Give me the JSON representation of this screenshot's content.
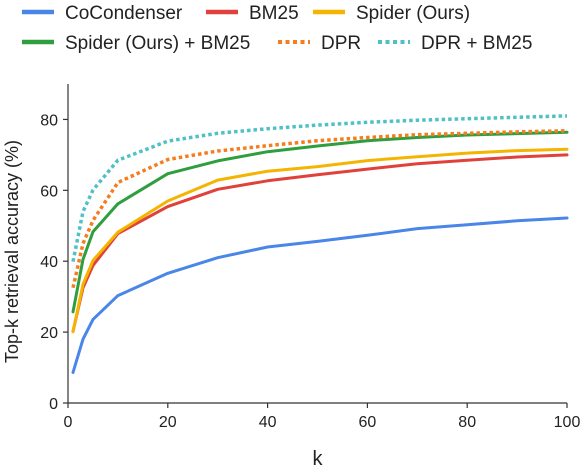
{
  "chart_data": {
    "type": "line",
    "xlabel": "k",
    "ylabel": "Top-k retrieval accuracy (%)",
    "xlim": [
      0,
      100
    ],
    "ylim": [
      0,
      90
    ],
    "x_ticks": [
      0,
      20,
      40,
      60,
      80,
      100
    ],
    "y_ticks": [
      0,
      20,
      40,
      60,
      80
    ],
    "grid": false,
    "legend_position": "top",
    "series": [
      {
        "name": "CoCondenser",
        "color": "#4a86e8",
        "dash": "solid",
        "x": [
          1,
          3,
          5,
          10,
          20,
          30,
          40,
          50,
          60,
          70,
          80,
          90,
          100
        ],
        "y": [
          8.6,
          18,
          23.6,
          30.3,
          36.6,
          41,
          44,
          45.6,
          47.3,
          49.2,
          50.3,
          51.4,
          52.2
        ]
      },
      {
        "name": "BM25",
        "color": "#e0413a",
        "dash": "solid",
        "x": [
          1,
          3,
          5,
          10,
          20,
          30,
          40,
          50,
          60,
          70,
          80,
          90,
          100
        ],
        "y": [
          20.2,
          32.5,
          38.8,
          47.8,
          55.4,
          60.3,
          62.7,
          64.4,
          66,
          67.5,
          68.5,
          69.4,
          70
        ]
      },
      {
        "name": "Spider (Ours)",
        "color": "#f4b400",
        "dash": "solid",
        "x": [
          1,
          3,
          5,
          10,
          20,
          30,
          40,
          50,
          60,
          70,
          80,
          90,
          100
        ],
        "y": [
          20.1,
          33.5,
          40.2,
          48.2,
          57,
          62.9,
          65.4,
          66.7,
          68.4,
          69.5,
          70.5,
          71.2,
          71.6
        ]
      },
      {
        "name": "Spider (Ours) + BM25",
        "color": "#2e9e3e",
        "dash": "solid",
        "x": [
          1,
          3,
          5,
          10,
          20,
          30,
          40,
          50,
          60,
          70,
          80,
          90,
          100
        ],
        "y": [
          25.7,
          40.5,
          48.3,
          56.2,
          64.7,
          68.3,
          70.9,
          72.5,
          74,
          74.9,
          75.6,
          76,
          76.4
        ]
      },
      {
        "name": "DPR",
        "color": "#f57c1f",
        "dash": "dotted",
        "x": [
          1,
          3,
          5,
          10,
          20,
          30,
          40,
          50,
          60,
          70,
          80,
          90,
          100
        ],
        "y": [
          32.5,
          45,
          51.5,
          62.2,
          68.7,
          71.1,
          72.6,
          74,
          74.9,
          75.7,
          76.1,
          76.5,
          76.8
        ]
      },
      {
        "name": "DPR + BM25",
        "color": "#4fc1c6",
        "dash": "dotted",
        "x": [
          1,
          3,
          5,
          10,
          20,
          30,
          40,
          50,
          60,
          70,
          80,
          90,
          100
        ],
        "y": [
          39.9,
          54,
          60.1,
          68.5,
          73.9,
          76.1,
          77.4,
          78.4,
          79.2,
          79.8,
          80.2,
          80.6,
          81
        ]
      }
    ]
  }
}
